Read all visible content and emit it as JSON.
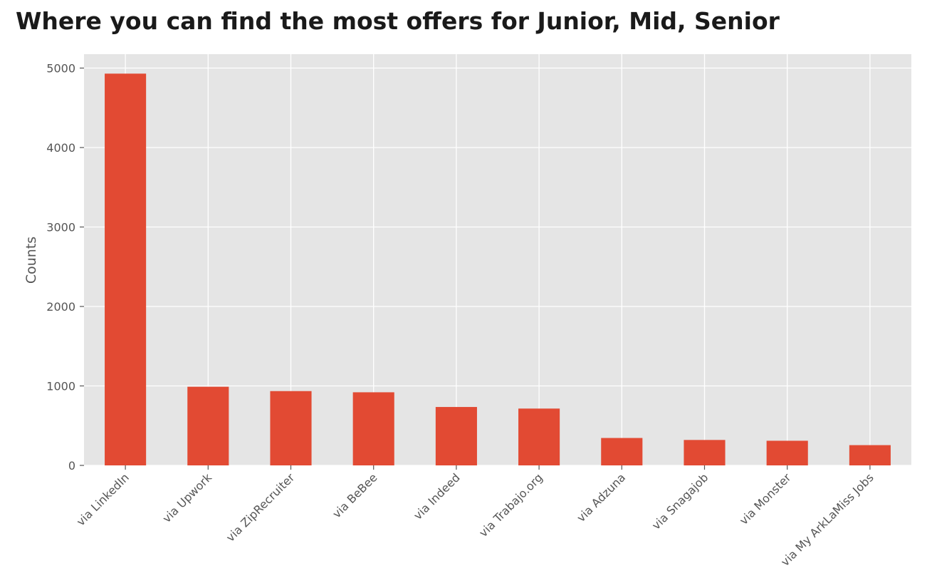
{
  "chart_data": {
    "type": "bar",
    "title": "Where you can find the most offers for Junior, Mid, Senior",
    "xlabel": "",
    "ylabel": "Counts",
    "categories": [
      "via LinkedIn",
      "via Upwork",
      "via ZipRecruiter",
      "via BeBee",
      "via Indeed",
      "via Trabajo.org",
      "via Adzuna",
      "via Snagajob",
      "via Monster",
      "via My ArkLaMiss Jobs"
    ],
    "values": [
      4930,
      990,
      935,
      920,
      735,
      715,
      345,
      320,
      310,
      255
    ],
    "yticks": [
      0,
      1000,
      2000,
      3000,
      4000,
      5000
    ],
    "ylim": [
      0,
      5175
    ],
    "grid": true,
    "colors": {
      "bar": "#E24A33",
      "plot_background": "#E5E5E5",
      "grid": "#FFFFFF",
      "tick_text": "#555555"
    }
  }
}
